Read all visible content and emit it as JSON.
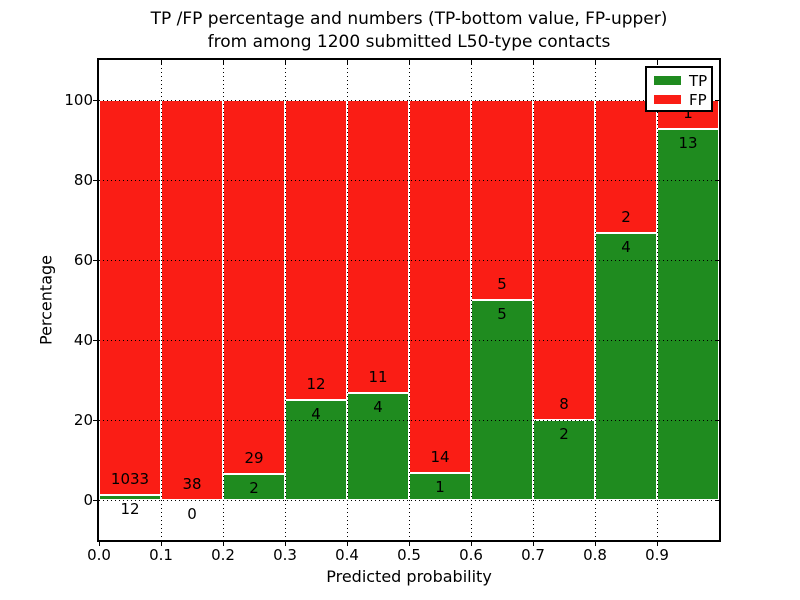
{
  "title": {
    "line1": "TP /FP percentage and numbers (TP-bottom value, FP-upper)",
    "line2": "from among 1200 submitted L50-type contacts"
  },
  "chart_data": {
    "type": "bar",
    "stacked": true,
    "normalization": "each bar scaled to 100% of bin total; counts shown as labels",
    "title": "TP /FP percentage and numbers (TP-bottom value, FP-upper) from among 1200 submitted L50-type contacts",
    "xlabel": "Predicted probability",
    "ylabel": "Percentage",
    "categories": [
      "0.0-0.1",
      "0.1-0.2",
      "0.2-0.3",
      "0.3-0.4",
      "0.4-0.5",
      "0.5-0.6",
      "0.6-0.7",
      "0.7-0.8",
      "0.8-0.9",
      "0.9-1.0"
    ],
    "series": [
      {
        "name": "TP",
        "color": "#1f8b1f",
        "values": [
          12,
          0,
          2,
          4,
          4,
          1,
          5,
          2,
          4,
          13
        ]
      },
      {
        "name": "FP",
        "color": "#fa1d15",
        "values": [
          1033,
          38,
          29,
          12,
          11,
          14,
          5,
          8,
          2,
          1
        ]
      }
    ],
    "tp_percent_per_bin": [
      1.15,
      0.0,
      6.45,
      25.0,
      26.67,
      6.67,
      50.0,
      20.0,
      66.67,
      92.86
    ],
    "total_contacts": 1200,
    "xlim": [
      0.0,
      1.0
    ],
    "ylim": [
      -10,
      110
    ],
    "xticks": [
      "0.0",
      "0.1",
      "0.2",
      "0.3",
      "0.4",
      "0.5",
      "0.6",
      "0.7",
      "0.8",
      "0.9"
    ],
    "yticks": [
      0,
      20,
      40,
      60,
      80,
      100
    ],
    "grid": "dotted, both axes, drawn over bars",
    "legend": {
      "position": "upper right",
      "entries": [
        {
          "label": "TP",
          "color": "#1f8b1f"
        },
        {
          "label": "FP",
          "color": "#fa1d15"
        }
      ]
    }
  }
}
